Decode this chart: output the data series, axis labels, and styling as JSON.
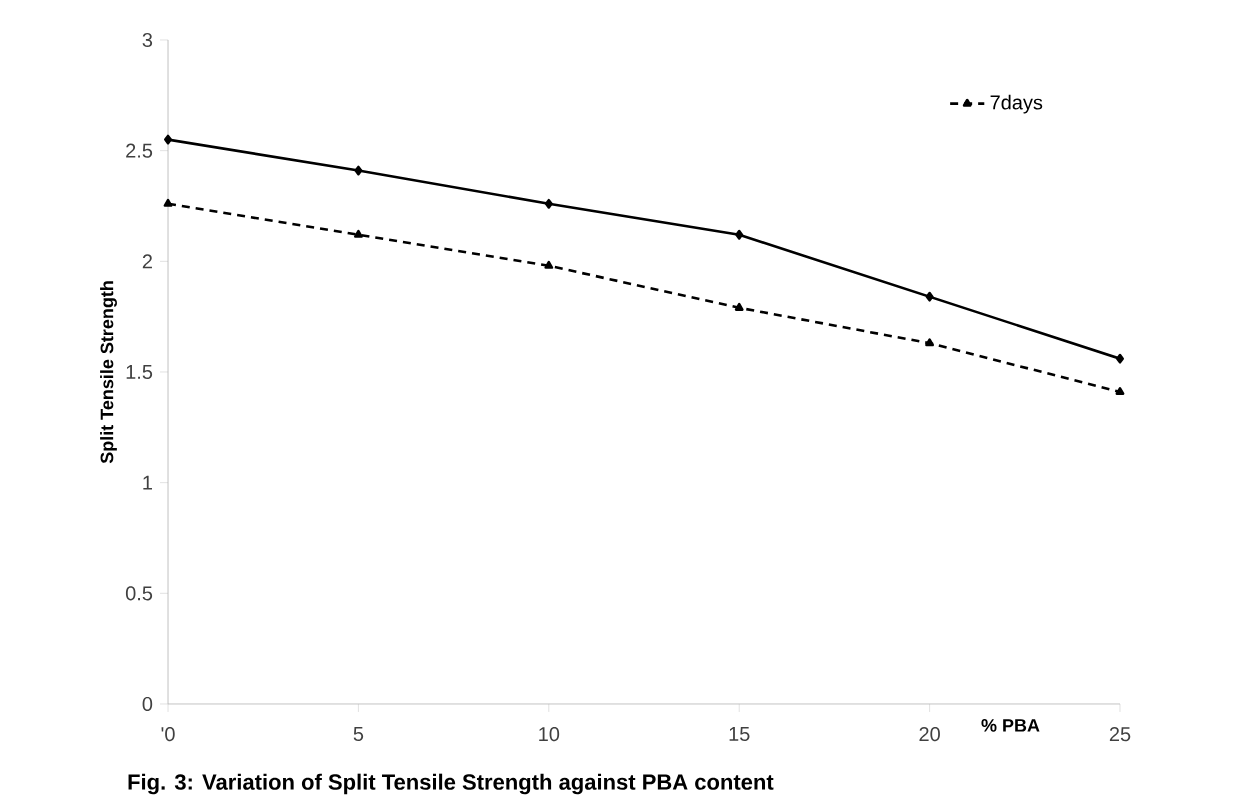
{
  "chart_data": {
    "type": "line",
    "title": "Fig. 3: Variation of Split Tensile Strength against PBA content",
    "xlabel": "% PBA",
    "ylabel": "Split Tensile Strength",
    "categories": [
      "'0",
      "5",
      "10",
      "15",
      "20",
      "25"
    ],
    "series": [
      {
        "color": "#000000",
        "values": [
          2.55,
          2.41,
          2.26,
          2.12,
          1.84,
          1.56
        ],
        "marker": "diamond",
        "line_style": "solid"
      },
      {
        "name": "7days",
        "color": "#000000",
        "values": [
          2.26,
          2.12,
          1.98,
          1.79,
          1.63,
          1.41
        ],
        "marker": "triangle",
        "line_style": "dashed"
      }
    ],
    "ylim": [
      0,
      3
    ],
    "yticks": [
      0,
      0.5,
      1,
      1.5,
      2,
      2.5,
      3
    ],
    "grid": false,
    "legend": "top right"
  }
}
